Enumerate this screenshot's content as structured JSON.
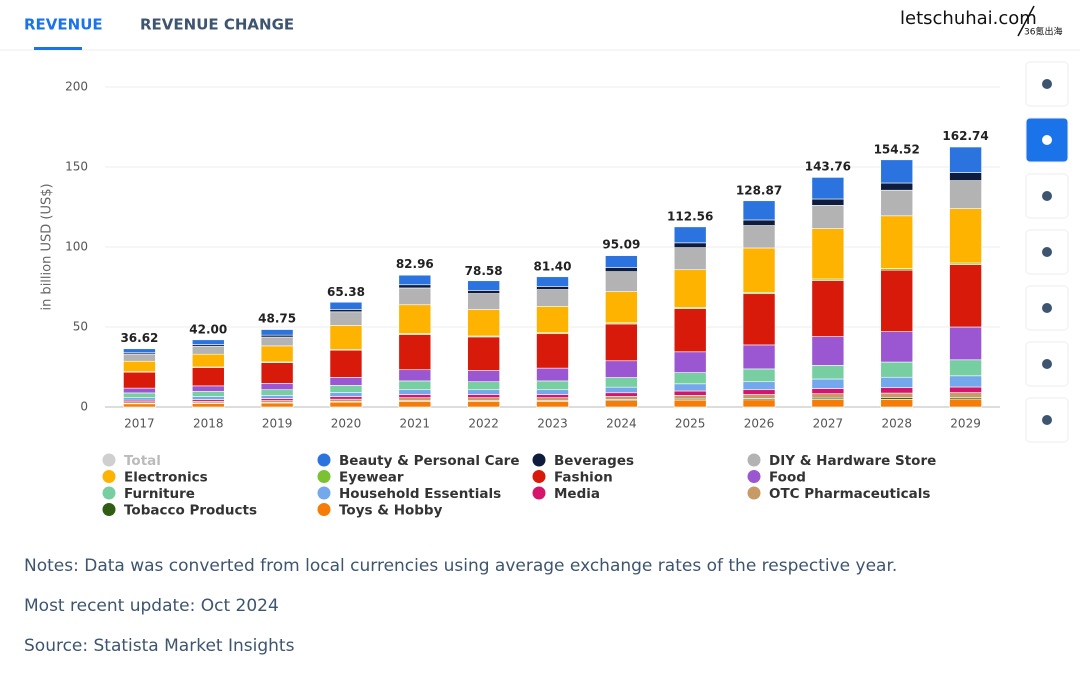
{
  "tabs": [
    "REVENUE",
    "REVENUE CHANGE"
  ],
  "logo": {
    "main": "letschuhai.com",
    "sub": "36氪出海"
  },
  "chart_data": {
    "type": "stacked_bar",
    "y_label": "in billion USD (US$)",
    "categories": [
      "2017",
      "2018",
      "2019",
      "2020",
      "2021",
      "2022",
      "2023",
      "2024",
      "2025",
      "2026",
      "2027",
      "2028",
      "2029"
    ],
    "ylim": [
      0,
      200
    ],
    "yticks": [
      0,
      50,
      100,
      150,
      200
    ],
    "grid": true,
    "legend": "bottom",
    "series": [
      {
        "name": "Total",
        "color": "#cfcfcf",
        "hidden": true,
        "values": [
          36.62,
          42,
          48.75,
          65.38,
          82.96,
          78.58,
          81.4,
          95.09,
          112.56,
          128.87,
          143.76,
          154.52,
          162.74
        ],
        "value_labels": [
          "36.62",
          "42.00",
          "48.75",
          "65.38",
          "82.96",
          "78.58",
          "81.40",
          "95.09",
          "112.56",
          "128.87",
          "143.76",
          "154.52",
          "162.74"
        ]
      },
      {
        "name": "Beauty & Personal Care",
        "color": "#2b74e0",
        "values": [
          2.5,
          3,
          3.5,
          4.5,
          6,
          6,
          6,
          7.5,
          10,
          12,
          13.5,
          14.5,
          16
        ]
      },
      {
        "name": "Beverages",
        "color": "#0e1d3d",
        "values": [
          0.8,
          1,
          1.2,
          1.5,
          2,
          2,
          2,
          2.5,
          3,
          3.5,
          4,
          4.5,
          5
        ]
      },
      {
        "name": "DIY & Hardware Store",
        "color": "#b3b3b3",
        "values": [
          4.5,
          5,
          5.5,
          8.5,
          10.5,
          10,
          10.5,
          12.5,
          13.8,
          14,
          14.5,
          16,
          17.5
        ]
      },
      {
        "name": "Electronics",
        "color": "#fdb300",
        "values": [
          6.5,
          8,
          10,
          15,
          18,
          16.5,
          16.5,
          19.5,
          23.5,
          27.7,
          31.5,
          33,
          34
        ]
      },
      {
        "name": "Eyewear",
        "color": "#7ac231",
        "values": [
          0.3,
          0.3,
          0.4,
          0.5,
          0.6,
          0.6,
          0.6,
          0.7,
          0.8,
          0.9,
          0.9,
          1,
          1
        ]
      },
      {
        "name": "Fashion",
        "color": "#d71a0a",
        "values": [
          10,
          11.5,
          13,
          17,
          22,
          21,
          21.5,
          23,
          27,
          32,
          35.1,
          38.4,
          39
        ]
      },
      {
        "name": "Food",
        "color": "#9b57d1",
        "values": [
          3,
          3.5,
          4,
          5,
          7,
          7,
          8,
          10.5,
          13,
          15,
          18,
          19,
          20.5
        ]
      },
      {
        "name": "Furniture",
        "color": "#77cfa1",
        "values": [
          3,
          3.2,
          3.5,
          4.5,
          5.5,
          5,
          5.5,
          6,
          7,
          8,
          8.5,
          9.5,
          10
        ]
      },
      {
        "name": "Household Essentials",
        "color": "#74a8ec",
        "values": [
          1.5,
          1.8,
          2,
          2.5,
          3,
          3,
          3,
          3.5,
          4.5,
          5,
          6,
          6.5,
          7
        ]
      },
      {
        "name": "Media",
        "color": "#d6146b",
        "values": [
          1,
          1.1,
          1.3,
          1.6,
          2,
          2,
          2,
          2.3,
          2.7,
          3,
          3.2,
          3.4,
          3.5
        ]
      },
      {
        "name": "OTC Pharmaceuticals",
        "color": "#c79a66",
        "values": [
          1,
          1.1,
          1.2,
          1.5,
          1.8,
          1.8,
          1.8,
          2,
          2.3,
          2.5,
          2.7,
          2.9,
          3
        ]
      },
      {
        "name": "Tobacco Products",
        "color": "#2f5d14",
        "values": [
          0.3,
          0.3,
          0.3,
          0.4,
          0.5,
          0.5,
          0.5,
          0.6,
          0.7,
          0.8,
          0.9,
          1,
          1
        ]
      },
      {
        "name": "Toys & Hobby",
        "color": "#f77c05",
        "values": [
          2,
          2.2,
          2.5,
          3,
          3.5,
          3.5,
          3.5,
          4,
          4.3,
          4.5,
          4.7,
          4.8,
          5
        ]
      }
    ]
  },
  "notes": [
    "Notes: Data was converted from local currencies using average exchange rates of the respective year.",
    "Most recent update: Oct 2024",
    "Source: Statista Market Insights"
  ]
}
